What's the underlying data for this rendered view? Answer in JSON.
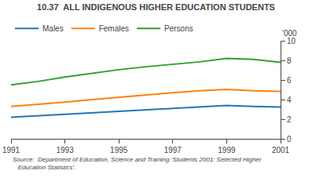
{
  "chart_data": {
    "type": "line",
    "title": "10.37  ALL INDIGENOUS HIGHER EDUCATION STUDENTS",
    "ylabel": "'000",
    "annotations": [
      "Source:  Department of Education, Science and Training ‘Students 2001: Selected Higher\n   Education Statistics’."
    ],
    "x": [
      1991,
      1992,
      1993,
      1994,
      1995,
      1996,
      1997,
      1998,
      1999,
      2000,
      2001
    ],
    "series": [
      {
        "name": "Males",
        "values": [
          2.2,
          2.35,
          2.55,
          2.7,
          2.85,
          3.0,
          3.15,
          3.3,
          3.4,
          3.3,
          3.25
        ]
      },
      {
        "name": "Females",
        "values": [
          3.3,
          3.5,
          3.75,
          4.0,
          4.25,
          4.5,
          4.7,
          4.9,
          5.05,
          4.9,
          4.85
        ]
      },
      {
        "name": "Persons",
        "values": [
          5.5,
          5.85,
          6.3,
          6.7,
          7.05,
          7.35,
          7.6,
          7.85,
          8.2,
          8.1,
          7.8
        ]
      }
    ],
    "xlim": [
      1991,
      2001
    ],
    "xticks": [
      1991,
      1993,
      1995,
      1997,
      1999,
      2001
    ],
    "ylim": [
      0,
      10
    ],
    "yticks": [
      0,
      2,
      4,
      6,
      8,
      10
    ],
    "grid": false,
    "legend": "top left"
  }
}
